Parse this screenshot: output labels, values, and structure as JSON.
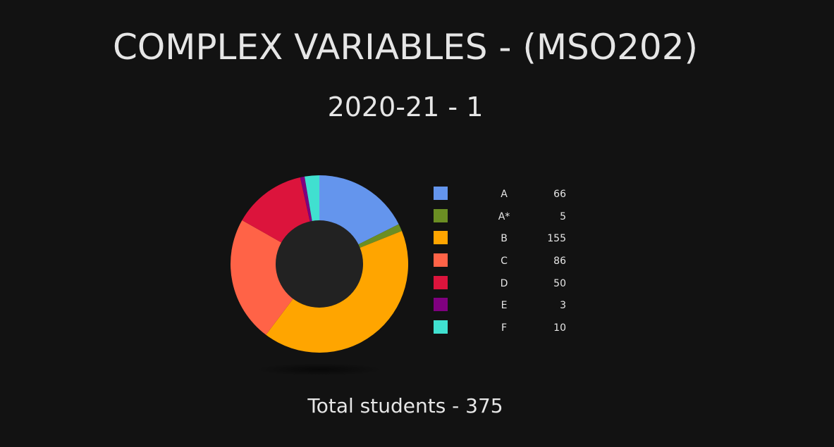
{
  "header": {
    "title": "COMPLEX VARIABLES - (MSO202)",
    "subtitle": "2020-21 - 1"
  },
  "footer": {
    "total_text": "Total students - 375"
  },
  "chart_data": {
    "type": "pie",
    "title": "COMPLEX VARIABLES - (MSO202)",
    "subtitle": "2020-21 - 1",
    "donut": true,
    "legend_position": "right",
    "categories": [
      "A",
      "A*",
      "B",
      "C",
      "D",
      "E",
      "F"
    ],
    "values": [
      66,
      5,
      155,
      86,
      50,
      3,
      10
    ],
    "colors": [
      "#6495ED",
      "#6B8E23",
      "#FFA500",
      "#FF6347",
      "#DC143C",
      "#800080",
      "#40E0D0"
    ],
    "center_color": "#222222",
    "total": 375
  }
}
